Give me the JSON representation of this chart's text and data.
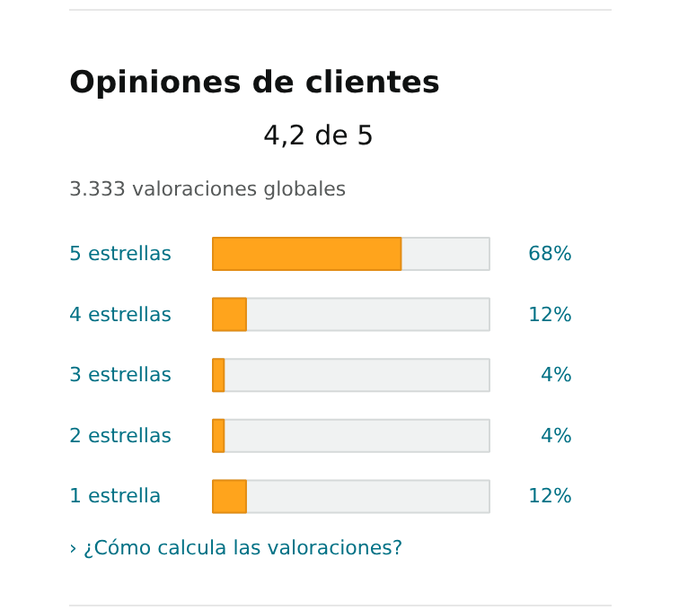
{
  "chart_data": {
    "type": "bar",
    "orientation": "horizontal",
    "title": "Opiniones de clientes",
    "subtitle": "4,2 de 5",
    "categories": [
      "5 estrellas",
      "4 estrellas",
      "3 estrellas",
      "2 estrellas",
      "1 estrella"
    ],
    "values": [
      68,
      12,
      4,
      4,
      12
    ],
    "value_labels": [
      "68%",
      "12%",
      "4%",
      "4%",
      "12%"
    ],
    "color": "#ffa41c",
    "xlim": [
      0,
      100
    ],
    "tick_labels": false,
    "grid": false,
    "annotations": [
      "3.333 valoraciones globales",
      "› ¿Cómo calcula las valoraciones?"
    ]
  }
}
